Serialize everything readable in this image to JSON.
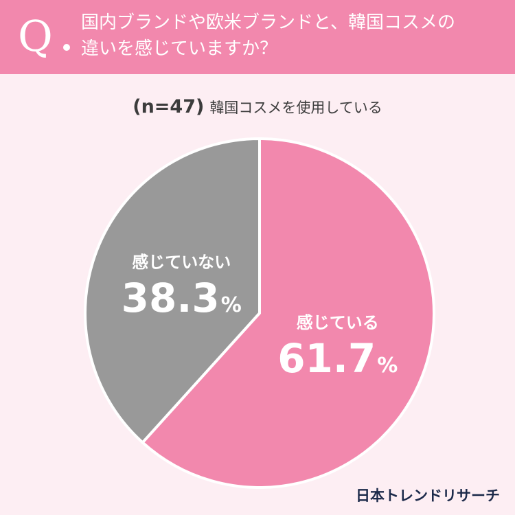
{
  "header": {
    "q_mark": "Q",
    "question_line1": "国内ブランドや欧米ブランドと、韓国コスメの",
    "question_line2": "違いを感じていますか？"
  },
  "sample": {
    "n_label": "(n=47)",
    "segment": "韓国コスメを使用している"
  },
  "colors": {
    "accent": "#f288ad",
    "background": "#fdeef3",
    "slice_feel": "#f288ad",
    "slice_not_feel": "#999999"
  },
  "chart_data": {
    "type": "pie",
    "slices": [
      {
        "label": "感じている",
        "value": 61.7,
        "display": "61.7",
        "unit": "%"
      },
      {
        "label": "感じていない",
        "value": 38.3,
        "display": "38.3",
        "unit": "%"
      }
    ]
  },
  "brand": "日本トレンドリサーチ"
}
